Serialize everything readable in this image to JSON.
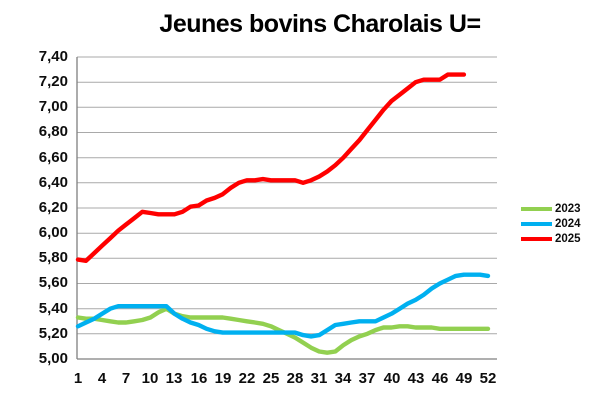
{
  "title": "Jeunes bovins Charolais U=",
  "legend": {
    "entries": [
      {
        "label": "2023",
        "color": "#92D050"
      },
      {
        "label": "2024",
        "color": "#00B0F0"
      },
      {
        "label": "2025",
        "color": "#FF0000"
      }
    ]
  },
  "axes": {
    "y_tick_labels": [
      "7,40",
      "7,20",
      "7,00",
      "6,80",
      "6,60",
      "6,40",
      "6,20",
      "6,00",
      "5,80",
      "5,60",
      "5,40",
      "5,20",
      "5,00"
    ],
    "x_tick_labels": [
      "1",
      "4",
      "7",
      "10",
      "13",
      "16",
      "19",
      "22",
      "25",
      "28",
      "31",
      "34",
      "37",
      "40",
      "43",
      "46",
      "49",
      "52"
    ]
  },
  "chart_data": {
    "type": "line",
    "title": "Jeunes bovins Charolais U=",
    "x_ticks": [
      1,
      4,
      7,
      10,
      13,
      16,
      19,
      22,
      25,
      28,
      31,
      34,
      37,
      40,
      43,
      46,
      49,
      52
    ],
    "x_range": [
      1,
      52
    ],
    "ylim": [
      5.0,
      7.4
    ],
    "y_step": 0.2,
    "grid": "horizontal",
    "legend_position": "right",
    "series": [
      {
        "name": "2023",
        "color": "#92D050",
        "x_start": 1,
        "values": [
          5.33,
          5.32,
          5.32,
          5.31,
          5.3,
          5.29,
          5.29,
          5.3,
          5.31,
          5.33,
          5.37,
          5.4,
          5.36,
          5.34,
          5.33,
          5.33,
          5.33,
          5.33,
          5.33,
          5.32,
          5.31,
          5.3,
          5.29,
          5.28,
          5.26,
          5.23,
          5.2,
          5.17,
          5.13,
          5.09,
          5.06,
          5.05,
          5.06,
          5.11,
          5.15,
          5.18,
          5.2,
          5.23,
          5.25,
          5.25,
          5.26,
          5.26,
          5.25,
          5.25,
          5.25,
          5.24,
          5.24,
          5.24,
          5.24,
          5.24,
          5.24,
          5.24
        ]
      },
      {
        "name": "2024",
        "color": "#00B0F0",
        "x_start": 1,
        "values": [
          5.26,
          5.29,
          5.32,
          5.36,
          5.4,
          5.42,
          5.42,
          5.42,
          5.42,
          5.42,
          5.42,
          5.42,
          5.36,
          5.32,
          5.29,
          5.27,
          5.24,
          5.22,
          5.21,
          5.21,
          5.21,
          5.21,
          5.21,
          5.21,
          5.21,
          5.21,
          5.21,
          5.21,
          5.19,
          5.18,
          5.19,
          5.23,
          5.27,
          5.28,
          5.29,
          5.3,
          5.3,
          5.3,
          5.33,
          5.36,
          5.4,
          5.44,
          5.47,
          5.51,
          5.56,
          5.6,
          5.63,
          5.66,
          5.67,
          5.67,
          5.67,
          5.66
        ]
      },
      {
        "name": "2025",
        "color": "#FF0000",
        "x_start": 1,
        "values": [
          5.79,
          5.78,
          5.84,
          5.9,
          5.96,
          6.02,
          6.07,
          6.12,
          6.17,
          6.16,
          6.15,
          6.15,
          6.15,
          6.17,
          6.21,
          6.22,
          6.26,
          6.28,
          6.31,
          6.36,
          6.4,
          6.42,
          6.42,
          6.43,
          6.42,
          6.42,
          6.42,
          6.42,
          6.4,
          6.42,
          6.45,
          6.49,
          6.54,
          6.6,
          6.67,
          6.74,
          6.82,
          6.9,
          6.98,
          7.05,
          7.1,
          7.15,
          7.2,
          7.22,
          7.22,
          7.22,
          7.26,
          7.26,
          7.26
        ]
      }
    ]
  }
}
